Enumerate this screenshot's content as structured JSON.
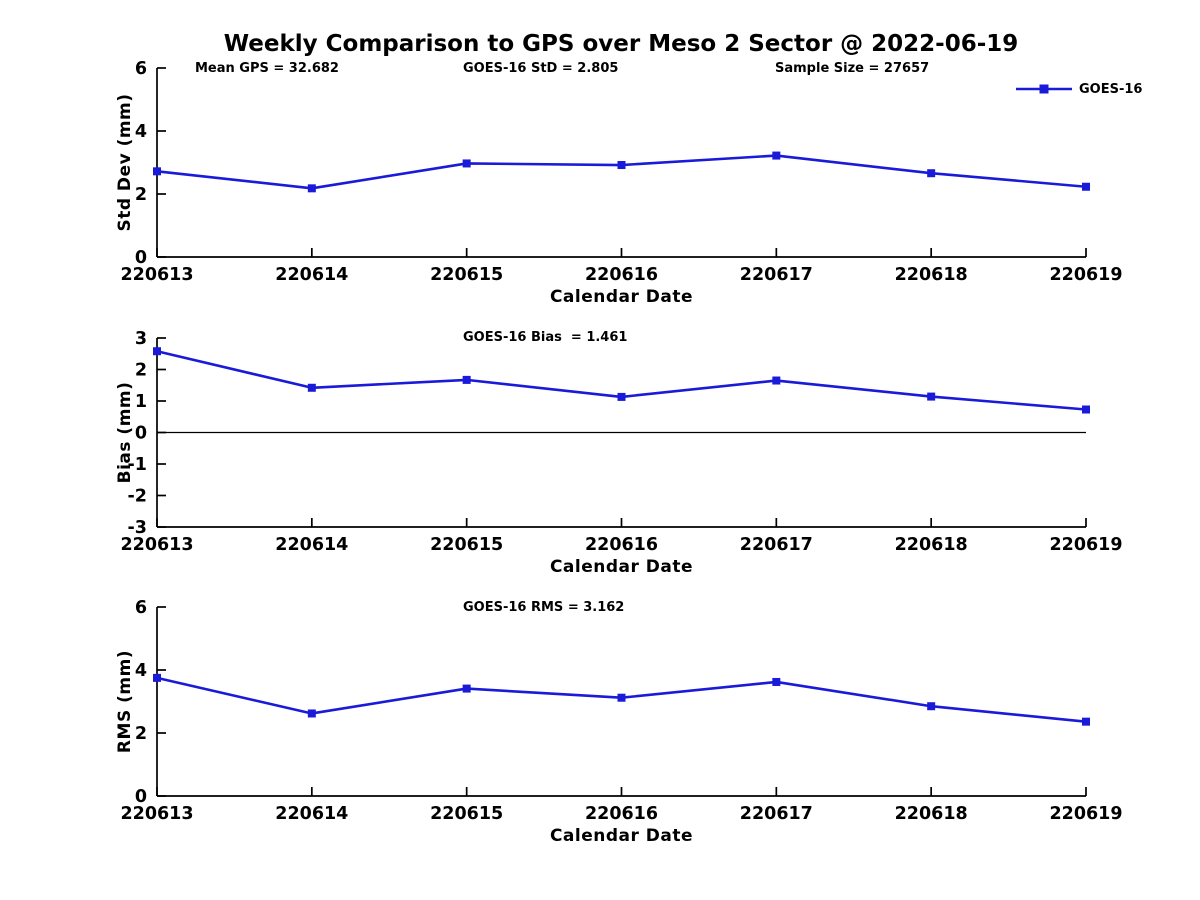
{
  "figure": {
    "title": "Weekly Comparison to GPS over Meso 2 Sector @ 2022-06-19",
    "legend": {
      "label": "GOES-16",
      "color": "#1a1ad9",
      "marker": "square",
      "position": "top-right"
    }
  },
  "chart_data": [
    {
      "type": "line",
      "name": "std-dev",
      "categories": [
        "220613",
        "220614",
        "220615",
        "220616",
        "220617",
        "220618",
        "220619"
      ],
      "series": [
        {
          "name": "GOES-16",
          "color": "#1a1ad9",
          "marker": "square",
          "values": [
            2.72,
            2.18,
            2.97,
            2.92,
            3.22,
            2.66,
            2.23
          ]
        }
      ],
      "xlabel": "Calendar Date",
      "ylabel": "Std Dev (mm)",
      "ylim": [
        0,
        6
      ],
      "yticks": [
        0,
        2,
        4,
        6
      ],
      "grid": false,
      "zero_line": false,
      "annotations": [
        "Mean GPS = 32.682",
        "GOES-16 StD = 2.805",
        "Sample Size = 27657"
      ]
    },
    {
      "type": "line",
      "name": "bias",
      "categories": [
        "220613",
        "220614",
        "220615",
        "220616",
        "220617",
        "220618",
        "220619"
      ],
      "series": [
        {
          "name": "GOES-16",
          "color": "#1a1ad9",
          "marker": "square",
          "values": [
            2.58,
            1.42,
            1.67,
            1.13,
            1.65,
            1.14,
            0.73
          ]
        }
      ],
      "xlabel": "Calendar Date",
      "ylabel": "Bias (mm)",
      "ylim": [
        -3,
        3
      ],
      "yticks": [
        3,
        2,
        1,
        0,
        -1,
        -2,
        -3
      ],
      "grid": false,
      "zero_line": true,
      "annotations": [
        "GOES-16 Bias  = 1.461"
      ]
    },
    {
      "type": "line",
      "name": "rms",
      "categories": [
        "220613",
        "220614",
        "220615",
        "220616",
        "220617",
        "220618",
        "220619"
      ],
      "series": [
        {
          "name": "GOES-16",
          "color": "#1a1ad9",
          "marker": "square",
          "values": [
            3.75,
            2.62,
            3.41,
            3.12,
            3.62,
            2.85,
            2.36
          ]
        }
      ],
      "xlabel": "Calendar Date",
      "ylabel": "RMS (mm)",
      "ylim": [
        0,
        6
      ],
      "yticks": [
        0,
        2,
        4,
        6
      ],
      "grid": false,
      "zero_line": false,
      "annotations": [
        "GOES-16 RMS = 3.162"
      ]
    }
  ]
}
